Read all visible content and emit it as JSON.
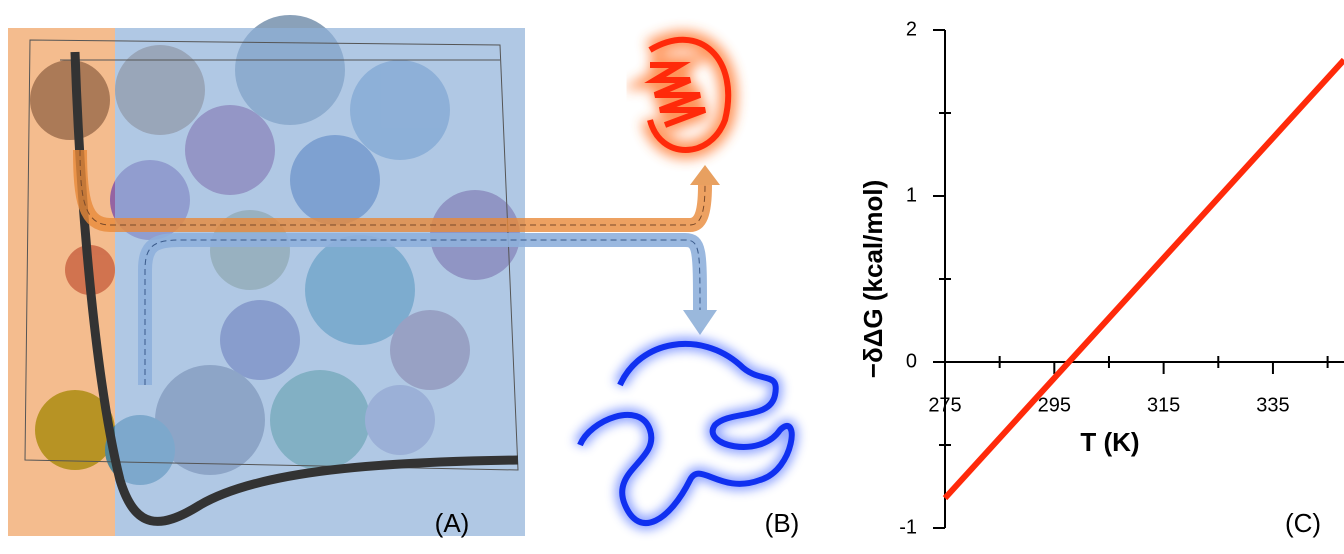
{
  "panel_labels": [
    "(A)",
    "(B)",
    "(C)"
  ],
  "chart_data": {
    "type": "line",
    "x_label": "T (K)",
    "y_label": "−δΔG (kcal/mol)",
    "x": [
      275,
      348
    ],
    "series": [
      {
        "color": "#ff2a0a",
        "values": [
          -0.82,
          1.82
        ]
      }
    ],
    "xlim": [
      275,
      348
    ],
    "xticks": [
      275,
      295,
      315,
      335
    ],
    "xminorticks": [
      285,
      305,
      325,
      345
    ],
    "ylim": [
      -1,
      2
    ],
    "yticks": [
      -1,
      0,
      1,
      2
    ],
    "yminorticks": [
      -0.5,
      0.5,
      1.5
    ]
  }
}
